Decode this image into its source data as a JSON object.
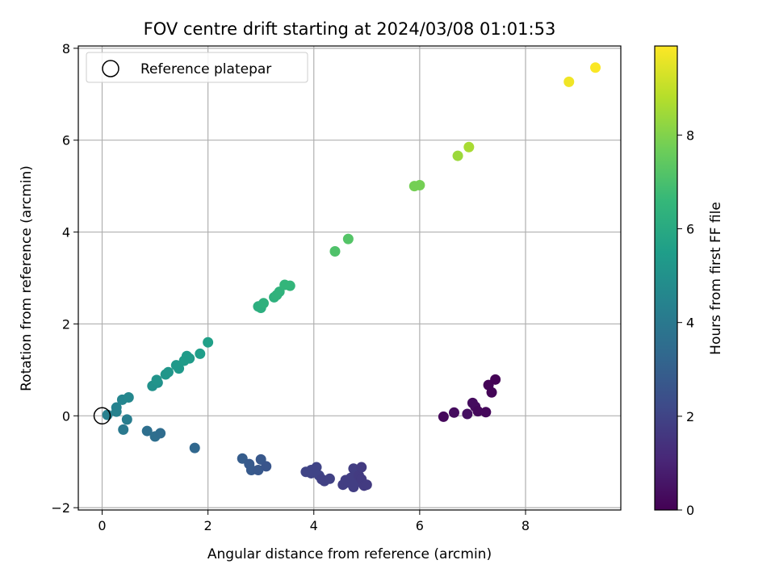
{
  "chart_data": {
    "type": "scatter",
    "title": "FOV centre drift starting at 2024/03/08 01:01:53",
    "xlabel": "Angular distance from reference (arcmin)",
    "ylabel": "Rotation from reference (arcmin)",
    "xlim": [
      -0.45,
      9.8
    ],
    "ylim": [
      -2.05,
      8.05
    ],
    "xticks": [
      "0",
      "2",
      "4",
      "6",
      "8"
    ],
    "yticks": [
      "−2",
      "0",
      "2",
      "4",
      "6",
      "8"
    ],
    "grid": true,
    "legend": {
      "placement": "top-left",
      "label": "Reference platepar"
    },
    "reference_point": {
      "x": 0,
      "y": 0
    },
    "colorbar": {
      "label": "Hours from first FF file",
      "range": [
        0,
        9.9
      ],
      "ticks": [
        "0",
        "2",
        "4",
        "6",
        "8"
      ],
      "colormap": "viridis",
      "stops": [
        "#440154",
        "#482878",
        "#3e4a89",
        "#31688e",
        "#26828e",
        "#1f9e89",
        "#35b779",
        "#6ece58",
        "#b5de2b",
        "#fde725"
      ]
    },
    "points": [
      [
        6.45,
        -0.02,
        0.2
      ],
      [
        6.65,
        0.07,
        0.3
      ],
      [
        6.9,
        0.04,
        0.4
      ],
      [
        7.0,
        0.28,
        0.3
      ],
      [
        7.05,
        0.2,
        0.3
      ],
      [
        7.1,
        0.1,
        0.2
      ],
      [
        7.25,
        0.08,
        0.2
      ],
      [
        7.3,
        0.67,
        0.1
      ],
      [
        7.36,
        0.51,
        0.1
      ],
      [
        7.43,
        0.79,
        0.05
      ],
      [
        3.85,
        -1.22,
        2.0
      ],
      [
        3.95,
        -1.18,
        2.0
      ],
      [
        3.95,
        -1.25,
        2.0
      ],
      [
        4.05,
        -1.12,
        2.0
      ],
      [
        4.1,
        -1.3,
        2.0
      ],
      [
        4.15,
        -1.38,
        1.9
      ],
      [
        4.2,
        -1.42,
        1.9
      ],
      [
        4.3,
        -1.37,
        1.9
      ],
      [
        4.55,
        -1.5,
        1.8
      ],
      [
        4.6,
        -1.4,
        1.8
      ],
      [
        4.65,
        -1.45,
        1.8
      ],
      [
        4.7,
        -1.35,
        1.8
      ],
      [
        4.75,
        -1.55,
        1.8
      ],
      [
        4.75,
        -1.15,
        1.8
      ],
      [
        4.8,
        -1.45,
        1.8
      ],
      [
        4.85,
        -1.3,
        1.7
      ],
      [
        4.9,
        -1.12,
        1.7
      ],
      [
        4.9,
        -1.38,
        1.7
      ],
      [
        4.95,
        -1.52,
        1.7
      ],
      [
        5.0,
        -1.5,
        1.7
      ],
      [
        2.65,
        -0.93,
        2.9
      ],
      [
        2.78,
        -1.05,
        2.8
      ],
      [
        2.82,
        -1.18,
        2.8
      ],
      [
        2.95,
        -1.18,
        2.7
      ],
      [
        3.0,
        -0.95,
        2.7
      ],
      [
        3.1,
        -1.1,
        2.6
      ],
      [
        1.75,
        -0.7,
        3.3
      ],
      [
        0.85,
        -0.33,
        3.6
      ],
      [
        1.0,
        -0.45,
        3.6
      ],
      [
        1.1,
        -0.38,
        3.5
      ],
      [
        0.4,
        -0.3,
        4.0
      ],
      [
        0.47,
        -0.08,
        4.2
      ],
      [
        0.1,
        0.02,
        4.3
      ],
      [
        0.27,
        0.09,
        4.4
      ],
      [
        0.27,
        0.18,
        4.4
      ],
      [
        0.38,
        0.35,
        4.5
      ],
      [
        0.5,
        0.4,
        4.6
      ],
      [
        0.95,
        0.65,
        5.0
      ],
      [
        1.05,
        0.72,
        5.0
      ],
      [
        1.03,
        0.78,
        5.1
      ],
      [
        1.2,
        0.9,
        5.2
      ],
      [
        1.25,
        0.95,
        5.2
      ],
      [
        1.4,
        1.1,
        5.3
      ],
      [
        1.45,
        1.03,
        5.3
      ],
      [
        1.55,
        1.2,
        5.4
      ],
      [
        1.6,
        1.3,
        5.4
      ],
      [
        1.65,
        1.25,
        5.4
      ],
      [
        1.85,
        1.35,
        5.5
      ],
      [
        2.0,
        1.6,
        5.6
      ],
      [
        2.95,
        2.38,
        6.2
      ],
      [
        3.0,
        2.35,
        6.2
      ],
      [
        3.05,
        2.45,
        6.3
      ],
      [
        3.25,
        2.58,
        6.3
      ],
      [
        3.3,
        2.63,
        6.4
      ],
      [
        3.35,
        2.7,
        6.4
      ],
      [
        3.45,
        2.85,
        6.5
      ],
      [
        3.55,
        2.83,
        6.5
      ],
      [
        4.4,
        3.58,
        7.1
      ],
      [
        4.65,
        3.85,
        7.2
      ],
      [
        5.9,
        5.0,
        7.8
      ],
      [
        6.0,
        5.02,
        7.8
      ],
      [
        6.72,
        5.66,
        8.4
      ],
      [
        6.93,
        5.85,
        8.6
      ],
      [
        8.82,
        7.27,
        9.7
      ],
      [
        9.32,
        7.58,
        9.85
      ]
    ]
  }
}
